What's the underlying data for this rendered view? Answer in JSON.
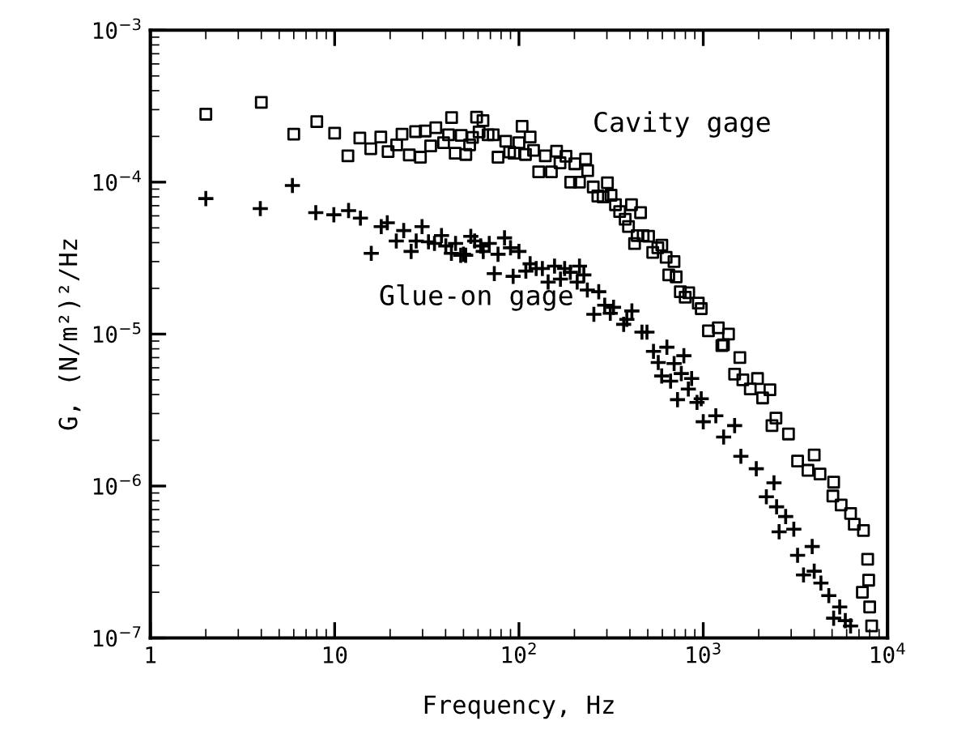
{
  "chart_data": {
    "type": "scatter",
    "xlabel": "Frequency, Hz",
    "ylabel": "G, (N/m²)²/Hz",
    "log": "xy",
    "grid": false,
    "legend": false,
    "xlim": [
      1,
      10000
    ],
    "ylim": [
      1e-07,
      0.001
    ],
    "xticks": [
      1,
      10,
      {
        "value": 100,
        "label": "10$^{2}$"
      },
      {
        "value": 1000,
        "label": "10$^{3}$"
      },
      {
        "value": 10000,
        "label": "10$^{4}$"
      }
    ],
    "yticks": [
      {
        "value": 1e-07,
        "label": "10$^{−7}$"
      },
      {
        "value": 1e-06,
        "label": "10$^{−6}$"
      },
      {
        "value": 1e-05,
        "label": "10$^{−5}$"
      },
      {
        "value": 0.0001,
        "label": "10$^{−4}$"
      },
      {
        "value": 0.001,
        "label": "10$^{−3}$"
      }
    ],
    "series": [
      {
        "name": "Cavity gage",
        "color": "#000000",
        "marker": "square",
        "x": [
          2,
          4,
          6,
          8,
          10,
          11.8,
          13.7,
          15.7,
          17.8,
          19.5,
          21.7,
          23.2,
          25.4,
          27.5,
          29.2,
          31,
          33.2,
          35.4,
          39,
          43.1,
          41.5,
          45.1,
          48.6,
          51.5,
          54,
          56,
          60.8,
          58.9,
          63.8,
          68,
          72.5,
          77,
          84.8,
          89,
          94,
          100,
          104,
          108.5,
          115,
          120,
          128,
          139,
          150,
          160,
          167,
          180,
          191,
          201,
          213,
          230,
          236,
          253,
          268,
          302,
          286,
          316,
          334,
          352,
          408,
          377,
          393,
          457,
          438,
          472,
          505,
          424,
          532,
          567,
          596,
          629,
          694,
          650,
          713,
          751,
          834,
          798,
          940,
          975,
          1067,
          1207,
          1371,
          1287,
          1262,
          1580,
          1480,
          1640,
          1970,
          1800,
          2300,
          2100,
          2480,
          2360,
          2900,
          3250,
          4000,
          3700,
          4300,
          5100,
          5050,
          5600,
          6300,
          6600,
          7400,
          7800,
          7900,
          8000,
          8200,
          7300
        ],
        "values": [
          0.00028,
          0.000335,
          0.000207,
          0.00025,
          0.00021,
          0.000149,
          0.000195,
          0.000166,
          0.000198,
          0.000159,
          0.000176,
          0.000207,
          0.000151,
          0.000215,
          0.000146,
          0.000217,
          0.000173,
          0.000228,
          0.000182,
          0.000266,
          0.000205,
          0.000155,
          0.000203,
          0.000152,
          0.000176,
          0.000197,
          0.000214,
          0.000268,
          0.000254,
          0.000205,
          0.000205,
          0.000146,
          0.000186,
          0.000158,
          0.000155,
          0.000182,
          0.000233,
          0.000152,
          0.000198,
          0.000162,
          0.000117,
          0.000149,
          0.000117,
          0.00016,
          0.000134,
          0.000148,
          0.0001,
          0.000132,
          0.0001,
          0.000142,
          0.000119,
          9.3e-05,
          8.1e-05,
          9.9e-05,
          8e-05,
          8.2e-05,
          7.1e-05,
          6.4e-05,
          7.1e-05,
          5.7e-05,
          5.1e-05,
          6.3e-05,
          4.45e-05,
          4.45e-05,
          4.4e-05,
          3.94e-05,
          3.45e-05,
          3.7e-05,
          3.85e-05,
          3.2e-05,
          3e-05,
          2.45e-05,
          2.38e-05,
          1.9e-05,
          1.87e-05,
          1.75e-05,
          1.6e-05,
          1.47e-05,
          1.05e-05,
          1.1e-05,
          1e-05,
          8.5e-06,
          8.4e-06,
          7e-06,
          5.45e-06,
          5e-06,
          5.1e-06,
          4.35e-06,
          4.3e-06,
          3.8e-06,
          2.8e-06,
          2.5e-06,
          2.2e-06,
          1.46e-06,
          1.6e-06,
          1.27e-06,
          1.2e-06,
          1.06e-06,
          8.6e-07,
          7.5e-07,
          6.6e-07,
          5.6e-07,
          5.1e-07,
          3.3e-07,
          2.4e-07,
          1.6e-07,
          1.2e-07,
          2e-07
        ]
      },
      {
        "name": "Glue-on gage",
        "color": "#000000",
        "marker": "cross",
        "x": [
          2,
          3.95,
          5.9,
          7.9,
          9.9,
          11.9,
          13.8,
          15.8,
          17.9,
          19.3,
          21.6,
          23.7,
          26,
          27.7,
          29.8,
          32.3,
          34.8,
          38,
          40.1,
          43,
          45.3,
          48.3,
          51.4,
          54.8,
          57.5,
          62,
          50,
          64,
          69,
          73.5,
          77,
          83.5,
          90,
          93,
          100,
          109,
          115,
          124,
          134,
          144,
          156,
          168,
          177,
          190,
          207,
          213,
          225,
          235,
          271,
          255,
          292,
          326,
          313,
          370,
          410,
          385,
          465,
          495,
          537,
          635,
          570,
          695,
          595,
          665,
          785,
          760,
          830,
          865,
          725,
          925,
          975,
          1000,
          1170,
          1290,
          1480,
          1600,
          1940,
          2420,
          2200,
          2500,
          2800,
          2580,
          3100,
          3250,
          3900,
          3500,
          4000,
          4350,
          4800,
          5500,
          5100,
          5900,
          6300
        ],
        "values": [
          7.8e-05,
          6.7e-05,
          9.5e-05,
          6.3e-05,
          6.1e-05,
          6.5e-05,
          5.8e-05,
          3.4e-05,
          5.1e-05,
          5.4e-05,
          4.1e-05,
          4.8e-05,
          3.5e-05,
          4.1e-05,
          5.1e-05,
          4.05e-05,
          3.95e-05,
          4.45e-05,
          3.8e-05,
          3.4e-05,
          3.95e-05,
          3.3e-05,
          3.3e-05,
          4.4e-05,
          4.1e-05,
          3.8e-05,
          3.35e-05,
          3.5e-05,
          3.95e-05,
          2.5e-05,
          3.35e-05,
          4.3e-05,
          3.7e-05,
          2.4e-05,
          3.5e-05,
          2.6e-05,
          2.9e-05,
          2.7e-05,
          2.7e-05,
          2.2e-05,
          2.8e-05,
          2.3e-05,
          2.7e-05,
          2.55e-05,
          2.2e-05,
          2.8e-05,
          2.45e-05,
          1.95e-05,
          1.9e-05,
          1.35e-05,
          1.55e-05,
          1.5e-05,
          1.37e-05,
          1.16e-05,
          1.42e-05,
          1.25e-05,
          1.03e-05,
          1.03e-05,
          7.7e-06,
          8.2e-06,
          6.5e-06,
          6.4e-06,
          5.3e-06,
          4.9e-06,
          7.2e-06,
          5.5e-06,
          4.35e-06,
          5.1e-06,
          3.7e-06,
          3.55e-06,
          3.75e-06,
          2.65e-06,
          2.9e-06,
          2.1e-06,
          2.5e-06,
          1.57e-06,
          1.3e-06,
          1.05e-06,
          8.5e-07,
          7.3e-07,
          6.3e-07,
          5e-07,
          5.2e-07,
          3.5e-07,
          4e-07,
          2.6e-07,
          2.75e-07,
          2.3e-07,
          1.9e-07,
          1.6e-07,
          1.35e-07,
          1.3e-07,
          1.2e-07
        ]
      }
    ]
  }
}
